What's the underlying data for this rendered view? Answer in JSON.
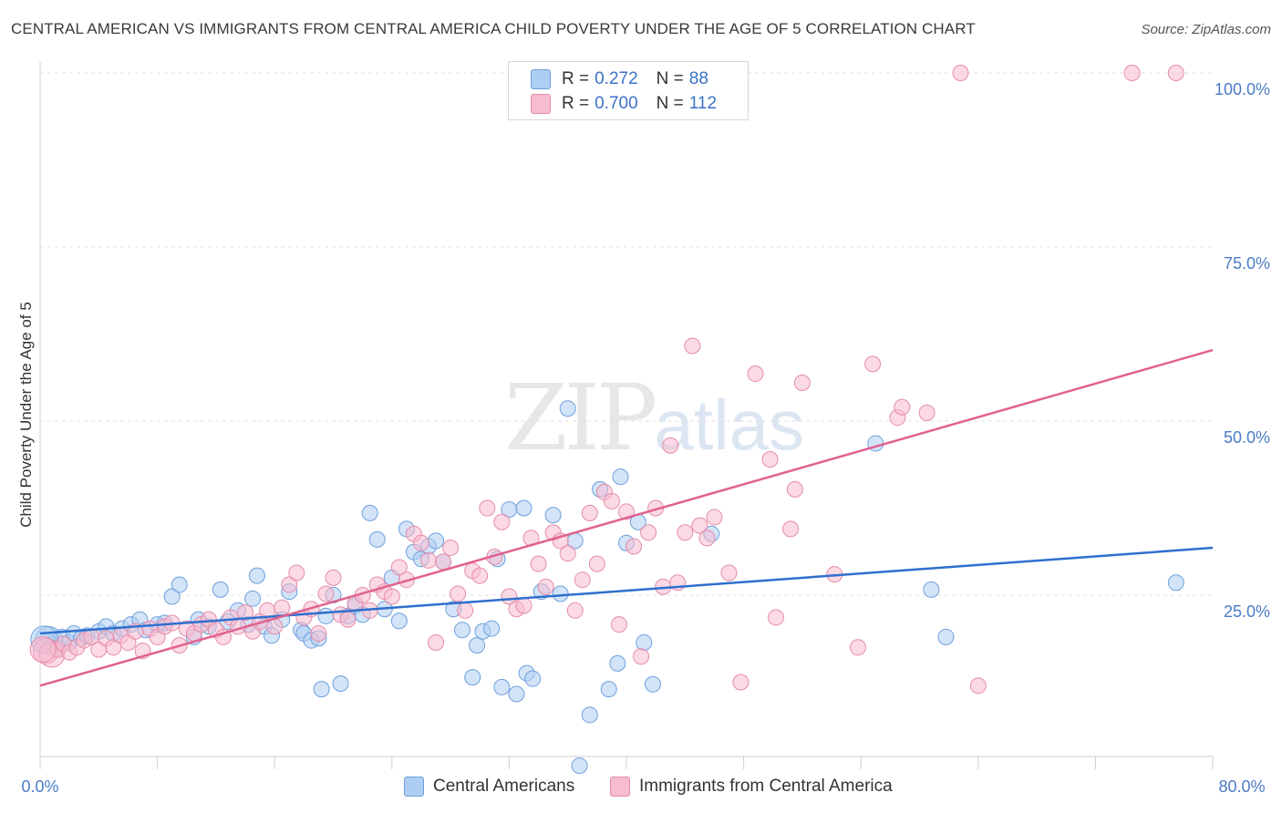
{
  "title": "CENTRAL AMERICAN VS IMMIGRANTS FROM CENTRAL AMERICA CHILD POVERTY UNDER THE AGE OF 5 CORRELATION CHART",
  "source": "Source: ZipAtlas.com",
  "watermark": {
    "zip": "ZIP",
    "atlas": "atlas"
  },
  "legend": {
    "rows": [
      {
        "r_label": "R =",
        "r_value": "0.272",
        "n_label": "N =",
        "n_value": "88",
        "color": "#aecdf2"
      },
      {
        "r_label": "R =",
        "r_value": "0.700",
        "n_label": "N =",
        "n_value": "112",
        "color": "#f7bcd0"
      }
    ]
  },
  "bottom_legend": [
    {
      "label": "Central Americans",
      "color": "#aecdf2"
    },
    {
      "label": "Immigrants from Central America",
      "color": "#f7bcd0"
    }
  ],
  "colors": {
    "blue_fill": "#aecdf2",
    "blue_stroke": "#6fa0dc",
    "blue_line": "#2f6fce",
    "pink_fill": "#f7bcd0",
    "pink_stroke": "#e58caa",
    "pink_line": "#e0628f",
    "tick_label": "#4a7cc7",
    "grid": "#e2e2e2"
  },
  "chart_data": {
    "type": "scatter",
    "title": "CENTRAL AMERICAN VS IMMIGRANTS FROM CENTRAL AMERICA CHILD POVERTY UNDER THE AGE OF 5 CORRELATION CHART",
    "xlabel": "",
    "ylabel": "Child Poverty Under the Age of 5",
    "xlim": [
      0,
      80
    ],
    "ylim": [
      0,
      102
    ],
    "x_tick_labels": [
      "0.0%",
      "80.0%"
    ],
    "y_ticks": [
      25,
      50,
      75,
      100
    ],
    "y_tick_labels": [
      "25.0%",
      "50.0%",
      "75.0%",
      "100.0%"
    ],
    "grid": true,
    "legend_position": "top-center",
    "series": [
      {
        "name": "Central Americans",
        "color": "#aecdf2",
        "trend": {
          "x": [
            0,
            80
          ],
          "y": [
            19.5,
            31.8
          ]
        },
        "points": [
          [
            0.6,
            18.5
          ],
          [
            0.8,
            18.0
          ],
          [
            1.2,
            17.5
          ],
          [
            1.5,
            19.0
          ],
          [
            2.0,
            18.2
          ],
          [
            2.3,
            19.5
          ],
          [
            2.8,
            18.8
          ],
          [
            3.2,
            19.2
          ],
          [
            4.0,
            19.8
          ],
          [
            4.5,
            20.5
          ],
          [
            5.0,
            19.5
          ],
          [
            5.6,
            20.2
          ],
          [
            6.2,
            20.8
          ],
          [
            6.8,
            21.5
          ],
          [
            7.2,
            20.0
          ],
          [
            8.0,
            20.8
          ],
          [
            8.5,
            21.0
          ],
          [
            9.0,
            24.8
          ],
          [
            9.5,
            26.5
          ],
          [
            10.5,
            19.0
          ],
          [
            10.8,
            21.5
          ],
          [
            11.5,
            20.5
          ],
          [
            12.3,
            25.8
          ],
          [
            12.8,
            21.2
          ],
          [
            13.5,
            22.8
          ],
          [
            14.2,
            20.8
          ],
          [
            14.5,
            24.5
          ],
          [
            14.8,
            27.8
          ],
          [
            15.3,
            20.5
          ],
          [
            15.8,
            19.2
          ],
          [
            16.5,
            21.5
          ],
          [
            17.0,
            25.5
          ],
          [
            17.8,
            20.0
          ],
          [
            18.0,
            19.5
          ],
          [
            18.5,
            18.5
          ],
          [
            19.0,
            18.8
          ],
          [
            19.5,
            22.0
          ],
          [
            19.2,
            11.5
          ],
          [
            20.0,
            25.0
          ],
          [
            20.5,
            12.3
          ],
          [
            21.0,
            22.0
          ],
          [
            21.5,
            23.5
          ],
          [
            22.0,
            22.2
          ],
          [
            22.5,
            36.8
          ],
          [
            23.0,
            33.0
          ],
          [
            23.5,
            23.0
          ],
          [
            24.0,
            27.5
          ],
          [
            24.5,
            21.3
          ],
          [
            25.0,
            34.5
          ],
          [
            25.5,
            31.2
          ],
          [
            26.0,
            30.2
          ],
          [
            26.5,
            32.0
          ],
          [
            27.0,
            32.8
          ],
          [
            27.5,
            29.8
          ],
          [
            28.2,
            23.0
          ],
          [
            28.8,
            20.0
          ],
          [
            29.5,
            13.2
          ],
          [
            29.8,
            17.8
          ],
          [
            30.2,
            19.8
          ],
          [
            30.8,
            20.2
          ],
          [
            31.2,
            30.2
          ],
          [
            31.5,
            11.8
          ],
          [
            32.0,
            37.3
          ],
          [
            32.5,
            10.8
          ],
          [
            33.0,
            37.5
          ],
          [
            33.2,
            13.8
          ],
          [
            33.6,
            13.0
          ],
          [
            34.2,
            25.5
          ],
          [
            35.0,
            36.5
          ],
          [
            35.5,
            25.2
          ],
          [
            36.0,
            51.8
          ],
          [
            36.5,
            32.8
          ],
          [
            36.8,
            0.5
          ],
          [
            37.5,
            7.8
          ],
          [
            38.2,
            40.2
          ],
          [
            38.8,
            11.5
          ],
          [
            39.4,
            15.2
          ],
          [
            39.6,
            42.0
          ],
          [
            40.0,
            32.5
          ],
          [
            40.8,
            35.5
          ],
          [
            41.2,
            18.2
          ],
          [
            41.8,
            12.2
          ],
          [
            45.8,
            33.8
          ],
          [
            57.0,
            46.8
          ],
          [
            60.8,
            25.8
          ],
          [
            61.8,
            19.0
          ],
          [
            77.5,
            26.8
          ],
          [
            0.3,
            18.6
          ]
        ]
      },
      {
        "name": "Immigrants from Central America",
        "color": "#f7bcd0",
        "trend": {
          "x": [
            0,
            80
          ],
          "y": [
            12.0,
            60.2
          ]
        },
        "points": [
          [
            0.4,
            17.0
          ],
          [
            0.8,
            16.5
          ],
          [
            1.2,
            17.2
          ],
          [
            1.6,
            18.0
          ],
          [
            2.0,
            16.8
          ],
          [
            2.5,
            17.5
          ],
          [
            3.0,
            18.5
          ],
          [
            3.5,
            19.0
          ],
          [
            4.0,
            17.2
          ],
          [
            4.5,
            18.8
          ],
          [
            5.0,
            17.5
          ],
          [
            5.5,
            19.2
          ],
          [
            6.0,
            18.2
          ],
          [
            6.5,
            19.8
          ],
          [
            7.0,
            17.0
          ],
          [
            7.5,
            20.2
          ],
          [
            8.0,
            19.0
          ],
          [
            8.5,
            20.5
          ],
          [
            9.0,
            21.0
          ],
          [
            9.5,
            17.8
          ],
          [
            10.0,
            20.2
          ],
          [
            10.5,
            19.5
          ],
          [
            11.0,
            20.8
          ],
          [
            11.5,
            21.5
          ],
          [
            12.0,
            20.0
          ],
          [
            12.5,
            19.0
          ],
          [
            13.0,
            21.8
          ],
          [
            13.5,
            20.5
          ],
          [
            14.0,
            22.5
          ],
          [
            14.5,
            19.8
          ],
          [
            15.0,
            21.2
          ],
          [
            15.5,
            22.8
          ],
          [
            16.0,
            20.5
          ],
          [
            16.5,
            23.2
          ],
          [
            17.0,
            26.5
          ],
          [
            17.5,
            28.2
          ],
          [
            18.0,
            21.8
          ],
          [
            18.5,
            23.0
          ],
          [
            19.0,
            19.5
          ],
          [
            19.5,
            25.2
          ],
          [
            20.0,
            27.5
          ],
          [
            20.5,
            22.2
          ],
          [
            21.0,
            21.5
          ],
          [
            21.5,
            23.8
          ],
          [
            22.0,
            25.0
          ],
          [
            22.5,
            22.8
          ],
          [
            23.0,
            26.5
          ],
          [
            23.5,
            25.5
          ],
          [
            24.0,
            24.8
          ],
          [
            24.5,
            29.0
          ],
          [
            25.0,
            27.2
          ],
          [
            25.5,
            33.8
          ],
          [
            26.0,
            32.5
          ],
          [
            26.5,
            30.0
          ],
          [
            27.0,
            18.2
          ],
          [
            27.5,
            29.8
          ],
          [
            28.0,
            31.8
          ],
          [
            28.5,
            25.2
          ],
          [
            29.0,
            22.8
          ],
          [
            29.5,
            28.5
          ],
          [
            30.0,
            27.8
          ],
          [
            30.5,
            37.5
          ],
          [
            31.0,
            30.5
          ],
          [
            31.5,
            35.5
          ],
          [
            32.0,
            24.8
          ],
          [
            32.5,
            23.0
          ],
          [
            33.0,
            23.5
          ],
          [
            33.5,
            33.2
          ],
          [
            34.0,
            29.5
          ],
          [
            34.5,
            26.2
          ],
          [
            35.0,
            34.0
          ],
          [
            35.5,
            32.8
          ],
          [
            36.0,
            31.0
          ],
          [
            36.5,
            22.8
          ],
          [
            37.0,
            27.2
          ],
          [
            37.5,
            36.8
          ],
          [
            38.0,
            29.5
          ],
          [
            38.5,
            39.8
          ],
          [
            39.0,
            38.5
          ],
          [
            39.5,
            20.8
          ],
          [
            40.0,
            37.0
          ],
          [
            40.5,
            32.0
          ],
          [
            41.0,
            16.2
          ],
          [
            41.5,
            34.0
          ],
          [
            42.0,
            37.5
          ],
          [
            42.5,
            26.2
          ],
          [
            43.0,
            46.5
          ],
          [
            43.5,
            26.8
          ],
          [
            44.0,
            34.0
          ],
          [
            44.5,
            60.8
          ],
          [
            45.0,
            35.0
          ],
          [
            45.5,
            33.2
          ],
          [
            46.0,
            36.2
          ],
          [
            47.0,
            28.2
          ],
          [
            47.8,
            12.5
          ],
          [
            48.8,
            56.8
          ],
          [
            49.8,
            44.5
          ],
          [
            50.2,
            21.8
          ],
          [
            51.2,
            34.5
          ],
          [
            51.5,
            40.2
          ],
          [
            52.0,
            55.5
          ],
          [
            54.2,
            28.0
          ],
          [
            55.8,
            17.5
          ],
          [
            56.8,
            58.2
          ],
          [
            58.5,
            50.5
          ],
          [
            58.8,
            52.0
          ],
          [
            60.5,
            51.2
          ],
          [
            62.8,
            100.0
          ],
          [
            64.0,
            12.0
          ],
          [
            74.5,
            100.0
          ],
          [
            77.5,
            100.0
          ],
          [
            0.2,
            17.2
          ]
        ]
      }
    ]
  }
}
